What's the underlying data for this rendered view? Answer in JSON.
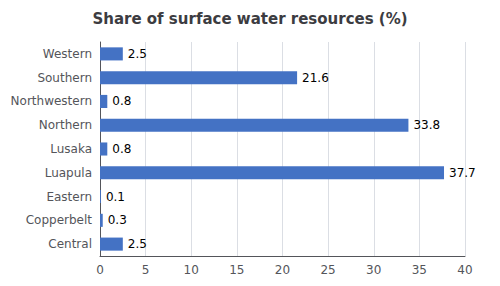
{
  "chart_data": {
    "type": "bar",
    "orientation": "horizontal",
    "title": "Share of surface water resources (%)",
    "categories": [
      "Western",
      "Southern",
      "Northwestern",
      "Northern",
      "Lusaka",
      "Luapula",
      "Eastern",
      "Copperbelt",
      "Central"
    ],
    "values": [
      2.5,
      21.6,
      0.8,
      33.8,
      0.8,
      37.7,
      0.1,
      0.3,
      2.5
    ],
    "color": "#4472C4",
    "xlim": [
      0,
      40
    ],
    "xticks": [
      0,
      5,
      10,
      15,
      20,
      25,
      30,
      35,
      40
    ],
    "grid": true,
    "data_labels": true
  }
}
